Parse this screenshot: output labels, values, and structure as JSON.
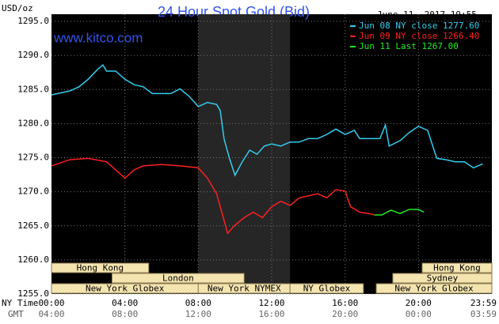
{
  "chart_data": {
    "type": "line",
    "title": "24 Hour Spot Gold (Bid)",
    "subtitle": "www.kitco.com",
    "date_label": "June 11, 2017 19:55",
    "y_label": "USD/oz",
    "x_label": "NY Time",
    "x2_label": "GMT",
    "xlim": [
      0,
      24
    ],
    "ylim": [
      1255,
      1295
    ],
    "yticks": [
      {
        "value": 1255,
        "label": "1255.0"
      },
      {
        "value": 1260,
        "label": "1260.0"
      },
      {
        "value": 1265,
        "label": "1265.0"
      },
      {
        "value": 1270,
        "label": "1270.0"
      },
      {
        "value": 1275,
        "label": "1275.0"
      },
      {
        "value": 1280,
        "label": "1280.0"
      },
      {
        "value": 1285,
        "label": "1285.0"
      },
      {
        "value": 1290,
        "label": "1290.0"
      },
      {
        "value": 1295,
        "label": "1295.0"
      }
    ],
    "xticks": [
      {
        "value": 0,
        "label": "00:00"
      },
      {
        "value": 4,
        "label": "04:00"
      },
      {
        "value": 8,
        "label": "08:00"
      },
      {
        "value": 12,
        "label": "12:00"
      },
      {
        "value": 16,
        "label": "16:00"
      },
      {
        "value": 20,
        "label": "20:00"
      },
      {
        "value": 23.983,
        "label": "23:59"
      }
    ],
    "x2ticks": [
      {
        "value": 0,
        "label": "04:00"
      },
      {
        "value": 4,
        "label": "08:00"
      },
      {
        "value": 8,
        "label": "12:00"
      },
      {
        "value": 12,
        "label": "16:00"
      },
      {
        "value": 16,
        "label": "20:00"
      },
      {
        "value": 20,
        "label": "00:00"
      },
      {
        "value": 23.983,
        "label": "03:59"
      }
    ],
    "grid": true,
    "highlight_x": [
      8,
      13
    ],
    "sessions": [
      [
        {
          "label": "Hong Kong",
          "start": 0,
          "end": 5.3
        },
        {
          "label": "Hong Kong",
          "start": 20.2,
          "end": 24
        }
      ],
      [
        {
          "label": "London",
          "start": 3.3,
          "end": 10.5
        },
        {
          "label": "Sydney",
          "start": 18.6,
          "end": 24
        }
      ],
      [
        {
          "label": "New York Globex",
          "start": 0,
          "end": 8
        },
        {
          "label": "New York NYMEX",
          "start": 8,
          "end": 13
        },
        {
          "label": "NY Globex",
          "start": 13,
          "end": 17
        },
        {
          "label": "New York Globex",
          "start": 17.7,
          "end": 24
        }
      ]
    ],
    "series": [
      {
        "name": "Jun 08 NY close 1277.60",
        "color": "#33ccee",
        "x": [
          0,
          1,
          1.5,
          2,
          2.5,
          2.8,
          3,
          3.5,
          4,
          4.5,
          5,
          5.5,
          6,
          6.5,
          7,
          7.5,
          8,
          8.5,
          9,
          9.2,
          9.4,
          9.7,
          10,
          10.4,
          10.8,
          11.2,
          11.6,
          12,
          12.5,
          13,
          13.5,
          14,
          14.5,
          15,
          15.5,
          16,
          16.5,
          16.8,
          17.5,
          17.9,
          18.2,
          18.4,
          19,
          19.5,
          20,
          20.5,
          21,
          21.5,
          22,
          22.5,
          23,
          23.5
        ],
        "values": [
          1284.2,
          1284.8,
          1285.4,
          1286.5,
          1287.9,
          1288.6,
          1287.7,
          1287.7,
          1286.5,
          1285.7,
          1285.4,
          1284.4,
          1284.4,
          1284.4,
          1285.1,
          1284.0,
          1282.5,
          1283.1,
          1282.8,
          1281.9,
          1277.8,
          1274.9,
          1272.4,
          1274.4,
          1276.1,
          1275.5,
          1276.7,
          1277.0,
          1276.7,
          1277.3,
          1277.3,
          1277.8,
          1277.8,
          1278.4,
          1279.2,
          1278.4,
          1279.0,
          1277.8,
          1277.8,
          1277.8,
          1279.8,
          1276.7,
          1277.5,
          1278.7,
          1279.6,
          1279.0,
          1274.9,
          1274.7,
          1274.4,
          1274.4,
          1273.5,
          1274.1
        ]
      },
      {
        "name": "Jun 09 NY close 1266.40",
        "color": "#ff2020",
        "x": [
          0,
          1,
          2,
          3,
          3.5,
          4,
          4.5,
          5,
          6,
          7,
          8,
          8.5,
          9,
          9.3,
          9.6,
          10,
          10.5,
          11,
          11.5,
          12,
          12.5,
          13,
          13.5,
          14,
          14.5,
          15,
          15.5,
          16,
          16.3,
          16.8,
          17.3,
          17.6
        ],
        "values": [
          1273.8,
          1274.7,
          1274.9,
          1274.4,
          1273.2,
          1272.0,
          1273.2,
          1273.8,
          1274.0,
          1273.8,
          1273.5,
          1272.0,
          1269.7,
          1266.8,
          1263.9,
          1265.1,
          1266.2,
          1267.0,
          1266.2,
          1267.8,
          1268.6,
          1268.0,
          1269.1,
          1269.4,
          1269.7,
          1269.1,
          1270.3,
          1270.1,
          1267.8,
          1267.0,
          1266.8,
          1266.6
        ]
      },
      {
        "name": "Jun 11 Last 1267.00",
        "color": "#22ee22",
        "x": [
          17.6,
          18,
          18.5,
          19,
          19.5,
          20,
          20.3
        ],
        "values": [
          1266.6,
          1266.6,
          1267.3,
          1266.8,
          1267.4,
          1267.4,
          1267.0
        ]
      }
    ]
  }
}
